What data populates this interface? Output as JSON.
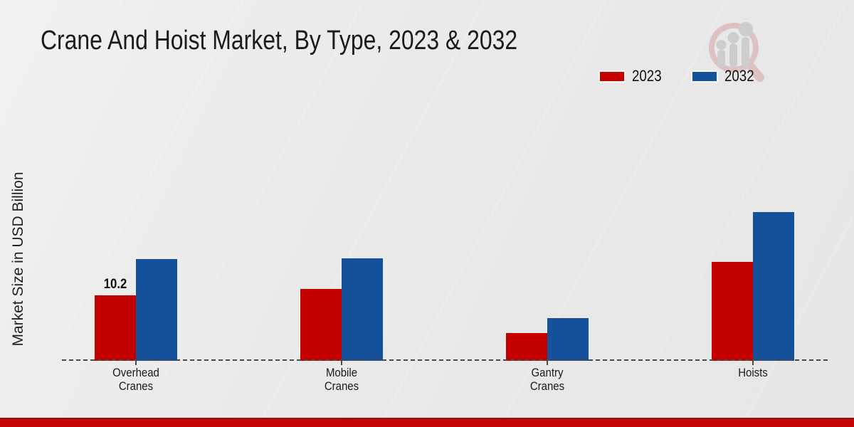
{
  "page": {
    "title": "Crane And Hoist Market, By Type, 2023 & 2032",
    "ylabel": "Market Size in USD Billion"
  },
  "chart_data": {
    "type": "bar",
    "title": "Crane And Hoist Market, By Type, 2023 & 2032",
    "xlabel": "",
    "ylabel": "Market Size in USD Billion",
    "categories": [
      "Overhead Cranes",
      "Mobile Cranes",
      "Gantry Cranes",
      "Hoists"
    ],
    "category_label_lines": [
      [
        "Overhead",
        "Cranes"
      ],
      [
        "Mobile",
        "Cranes"
      ],
      [
        "Gantry",
        "Cranes"
      ],
      [
        "Hoists"
      ]
    ],
    "series": [
      {
        "name": "2023",
        "color": "#c40000",
        "values": [
          10.2,
          11.2,
          4.3,
          15.4
        ]
      },
      {
        "name": "2032",
        "color": "#15519b",
        "values": [
          15.9,
          16.0,
          6.7,
          23.2
        ]
      }
    ],
    "annotations": [
      {
        "series_index": 0,
        "category_index": 0,
        "text": "10.2"
      }
    ],
    "ylim": [
      0,
      25
    ],
    "grid": false,
    "y_axis_ticks_visible": false,
    "legend_position": "top-right",
    "baseline_style": "dashed"
  },
  "branding": {
    "watermark_icon": "magnifier-bar-chart-logo",
    "bottom_bar_colors": [
      "#9e0b0b",
      "#c40606"
    ]
  }
}
